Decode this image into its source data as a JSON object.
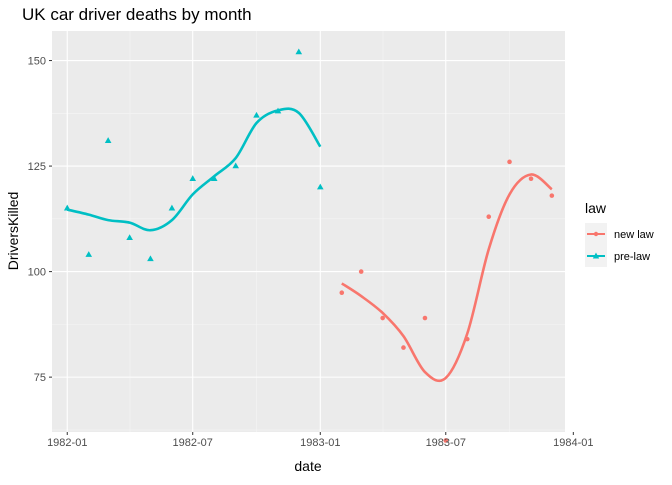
{
  "chart_data": {
    "type": "scatter",
    "title": "UK car driver deaths by month",
    "xlabel": "date",
    "ylabel": "DriversKilled",
    "x_ticks": [
      "1982-01",
      "1982-07",
      "1983-01",
      "1983-07",
      "1984-01"
    ],
    "y_ticks": [
      75,
      100,
      125,
      150
    ],
    "xlim": [
      "1981-12-10",
      "1983-12-20"
    ],
    "ylim": [
      62,
      157
    ],
    "grid": true,
    "legend_position": "right",
    "legend": {
      "title": "law",
      "items": [
        {
          "label": "new law",
          "color": "#F8766D",
          "marker": "circle"
        },
        {
          "label": "pre-law",
          "color": "#00BFC4",
          "marker": "triangle"
        }
      ]
    },
    "series": [
      {
        "name": "pre-law",
        "color": "#00BFC4",
        "marker": "triangle",
        "x": [
          "1982-01-01",
          "1982-02-01",
          "1982-03-01",
          "1982-04-01",
          "1982-05-01",
          "1982-06-01",
          "1982-07-01",
          "1982-08-01",
          "1982-09-01",
          "1982-10-01",
          "1982-11-01",
          "1982-12-01",
          "1983-01-01"
        ],
        "y": [
          115,
          104,
          131,
          108,
          103,
          115,
          122,
          122,
          125,
          137,
          138,
          152,
          120
        ],
        "smooth": {
          "x": [
            "1982-01-01",
            "1982-02-01",
            "1982-03-01",
            "1982-04-01",
            "1982-05-01",
            "1982-06-01",
            "1982-07-01",
            "1982-08-01",
            "1982-09-01",
            "1982-10-01",
            "1982-11-01",
            "1982-12-01",
            "1983-01-01"
          ],
          "y": [
            114.7,
            113.5,
            112.2,
            111.6,
            109.8,
            112.2,
            118.3,
            122.6,
            126.9,
            135.2,
            138.2,
            137.6,
            129.6
          ]
        }
      },
      {
        "name": "new law",
        "color": "#F8766D",
        "marker": "circle",
        "x": [
          "1983-02-01",
          "1983-03-01",
          "1983-04-01",
          "1983-05-01",
          "1983-06-01",
          "1983-07-01",
          "1983-08-01",
          "1983-09-01",
          "1983-10-01",
          "1983-11-01",
          "1983-12-01"
        ],
        "y": [
          95,
          100,
          89,
          82,
          89,
          60,
          84,
          113,
          126,
          122,
          118
        ],
        "smooth": {
          "x": [
            "1983-02-01",
            "1983-03-01",
            "1983-04-01",
            "1983-05-01",
            "1983-06-01",
            "1983-07-01",
            "1983-08-01",
            "1983-09-01",
            "1983-10-01",
            "1983-11-01",
            "1983-12-01"
          ],
          "y": [
            97.2,
            94.2,
            90.2,
            84.7,
            76.2,
            74.8,
            85.3,
            105.3,
            118.3,
            123.0,
            119.5
          ]
        }
      }
    ]
  }
}
